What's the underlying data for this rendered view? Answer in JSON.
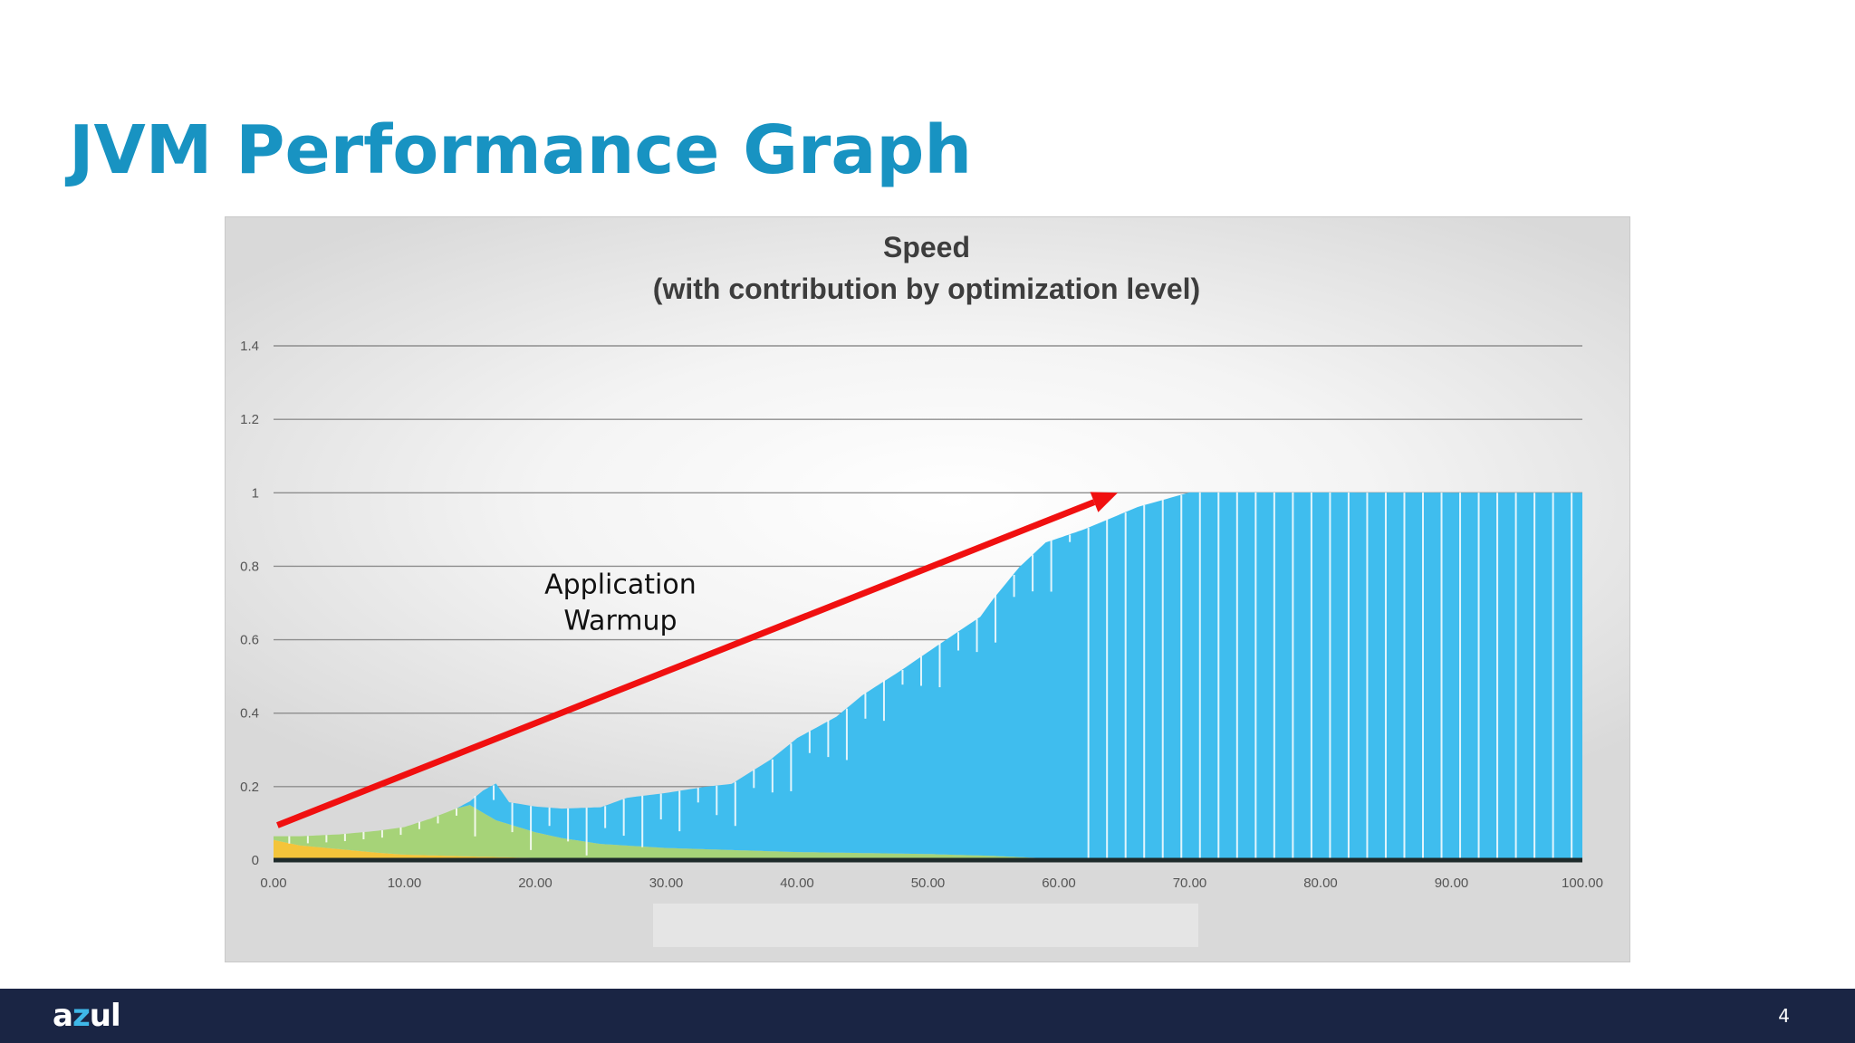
{
  "slide": {
    "title": "JVM Performance Graph",
    "page_number": "4",
    "logo_text": "azul"
  },
  "colors": {
    "title": "#1893c2",
    "footer": "#1a2544",
    "series_optimized": "#3fbdee",
    "series_interpreted": "#a6d378",
    "series_baseline": "#f4c43a",
    "annotation_arrow": "#f01010"
  },
  "chart_data": {
    "type": "area",
    "title": "Speed",
    "subtitle": "(with contribution by optimization level)",
    "xlabel": "",
    "ylabel": "",
    "xlim": [
      0,
      100
    ],
    "ylim": [
      0,
      1.4
    ],
    "x_ticks": [
      "0.00",
      "10.00",
      "20.00",
      "30.00",
      "40.00",
      "50.00",
      "60.00",
      "70.00",
      "80.00",
      "90.00",
      "100.00"
    ],
    "y_ticks": [
      "0",
      "0.2",
      "0.4",
      "0.6",
      "0.8",
      "1",
      "1.2",
      "1.4"
    ],
    "grid": true,
    "legend": "none",
    "series": [
      {
        "color": "#f4c43a",
        "x": [
          0,
          2,
          5,
          8,
          10,
          15,
          20,
          25,
          30,
          40,
          100
        ],
        "values": [
          0.055,
          0.04,
          0.03,
          0.02,
          0.015,
          0.01,
          0.006,
          0.004,
          0.003,
          0.002,
          0.0
        ]
      },
      {
        "color": "#a6d378",
        "x": [
          0,
          2,
          5,
          8,
          10,
          12,
          14,
          15,
          16,
          17,
          18,
          20,
          22,
          25,
          30,
          35,
          40,
          50,
          55,
          60,
          62,
          100
        ],
        "values": [
          0.01,
          0.025,
          0.04,
          0.06,
          0.075,
          0.1,
          0.13,
          0.14,
          0.12,
          0.1,
          0.09,
          0.07,
          0.055,
          0.04,
          0.03,
          0.025,
          0.02,
          0.015,
          0.01,
          0.002,
          0.0,
          0.0
        ]
      },
      {
        "color": "#3fbdee",
        "x": [
          0,
          14,
          15,
          16,
          17,
          18,
          20,
          22,
          25,
          27,
          30,
          33,
          35,
          38,
          40,
          43,
          45,
          48,
          50,
          52,
          54,
          55,
          57,
          59,
          62,
          64,
          66,
          68,
          70,
          100
        ],
        "values": [
          0.0,
          0.0,
          0.01,
          0.06,
          0.1,
          0.06,
          0.07,
          0.08,
          0.1,
          0.13,
          0.15,
          0.17,
          0.18,
          0.25,
          0.31,
          0.37,
          0.43,
          0.5,
          0.55,
          0.6,
          0.65,
          0.7,
          0.79,
          0.86,
          0.9,
          0.93,
          0.96,
          0.98,
          1.0,
          1.0
        ]
      }
    ],
    "annotations": [
      {
        "text_lines": [
          "Application",
          "Warmup"
        ],
        "text_x": 26.5,
        "text_y": 0.75,
        "arrow_from": [
          0.3,
          0.095
        ],
        "arrow_to": [
          64.5,
          1.0
        ]
      }
    ]
  }
}
